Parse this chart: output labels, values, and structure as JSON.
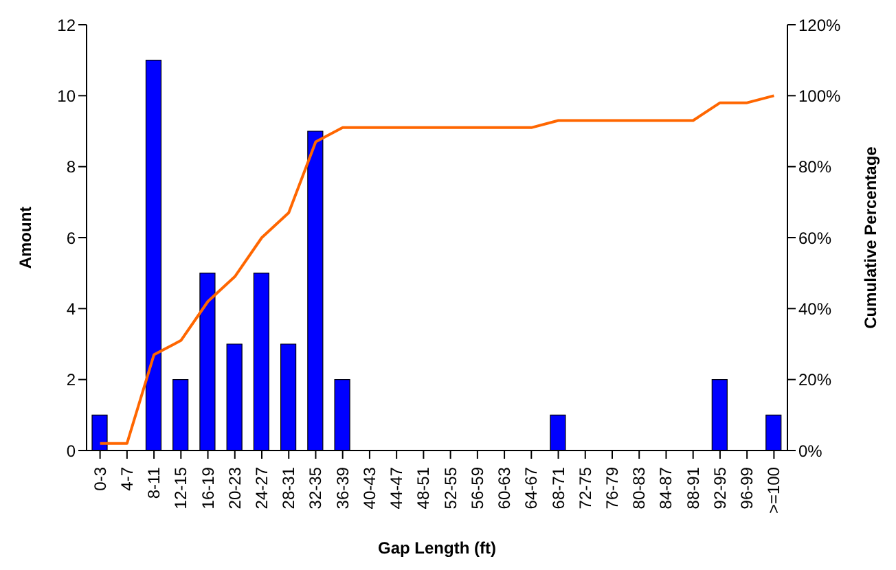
{
  "chart_data": {
    "type": "bar",
    "xlabel": "Gap Length (ft)",
    "ylabel": "Amount",
    "y2label": "Cumulative Percentage",
    "categories": [
      "0-3",
      "4-7",
      "8-11",
      "12-15",
      "16-19",
      "20-23",
      "24-27",
      "28-31",
      "32-35",
      "36-39",
      "40-43",
      "44-47",
      "48-51",
      "52-55",
      "56-59",
      "60-63",
      "64-67",
      "68-71",
      "72-75",
      "76-79",
      "80-83",
      "84-87",
      "88-91",
      "92-95",
      "96-99",
      ">=100"
    ],
    "series": [
      {
        "color": "#0000ff",
        "values": [
          1,
          0,
          11,
          2,
          5,
          3,
          5,
          3,
          9,
          2,
          0,
          0,
          0,
          0,
          0,
          0,
          0,
          1,
          0,
          0,
          0,
          0,
          0,
          2,
          0,
          1
        ]
      },
      {
        "type": "line",
        "axis": "y2",
        "color": "#ff6600",
        "values": [
          2,
          2,
          27,
          31,
          42,
          49,
          60,
          67,
          87,
          91,
          91,
          91,
          91,
          91,
          91,
          91,
          91,
          93,
          93,
          93,
          93,
          93,
          93,
          98,
          98,
          100
        ]
      }
    ],
    "ylim": [
      0,
      12
    ],
    "yticks": [
      0,
      2,
      4,
      6,
      8,
      10,
      12
    ],
    "y2lim": [
      0,
      120
    ],
    "y2ticks": [
      {
        "value": 0,
        "label": "0%"
      },
      {
        "value": 20,
        "label": "20%"
      },
      {
        "value": 40,
        "label": "40%"
      },
      {
        "value": 60,
        "label": "60%"
      },
      {
        "value": 80,
        "label": "80%"
      },
      {
        "value": 100,
        "label": "100%"
      },
      {
        "value": 120,
        "label": "120%"
      }
    ],
    "grid": false,
    "legend": false
  }
}
